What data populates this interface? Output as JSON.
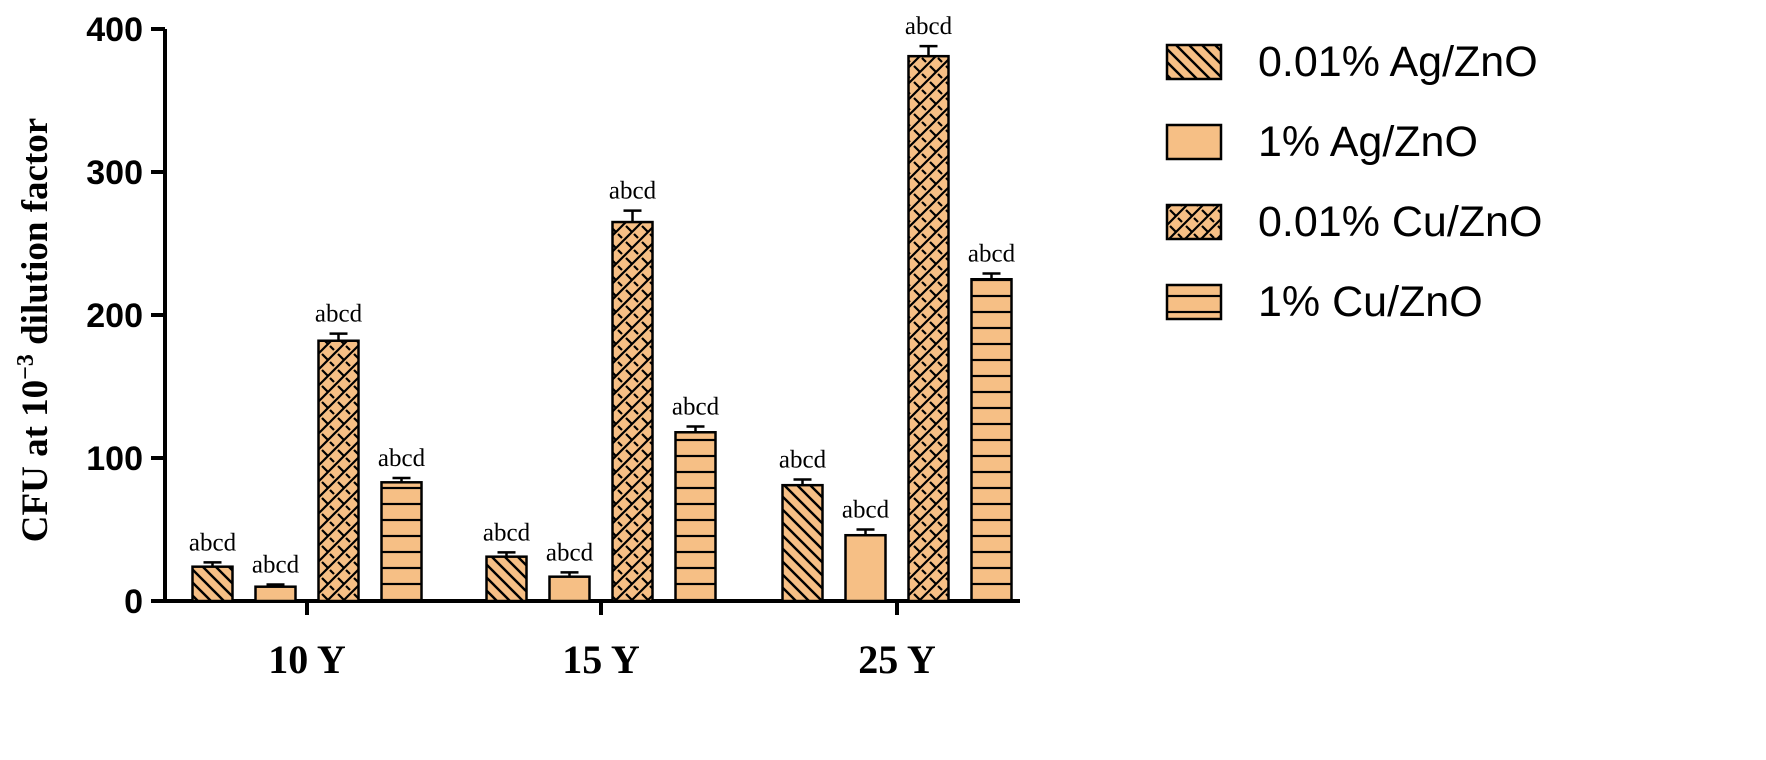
{
  "chart_data": {
    "type": "bar",
    "title": "",
    "xlabel": "",
    "ylabel_prefix": "CFU at 10",
    "ylabel_sup": "−3",
    "ylabel_suffix": " dilution factor",
    "ylim": [
      0,
      400
    ],
    "yticks": [
      0,
      100,
      200,
      300,
      400
    ],
    "categories": [
      "10 Y",
      "15 Y",
      "25 Y"
    ],
    "legend_position": "right",
    "bar_color": "#f6bf85",
    "series": [
      {
        "name": "0.01% Ag/ZnO",
        "pattern": "diag",
        "values": [
          24,
          31,
          81
        ],
        "errors": [
          3,
          3,
          4
        ],
        "labels": [
          "abcd",
          "abcd",
          "abcd"
        ]
      },
      {
        "name": "1% Ag/ZnO",
        "pattern": "solid",
        "values": [
          10,
          17,
          46
        ],
        "errors": [
          1.5,
          3,
          4
        ],
        "labels": [
          "abcd",
          "abcd",
          "abcd"
        ]
      },
      {
        "name": "0.01% Cu/ZnO",
        "pattern": "weave",
        "values": [
          182,
          265,
          381
        ],
        "errors": [
          5,
          8,
          7
        ],
        "labels": [
          "abcd",
          "abcd",
          "abcd"
        ]
      },
      {
        "name": "1% Cu/ZnO",
        "pattern": "horiz",
        "values": [
          83,
          118,
          225
        ],
        "errors": [
          3,
          4,
          4
        ],
        "labels": [
          "abcd",
          "abcd",
          "abcd"
        ]
      }
    ]
  }
}
